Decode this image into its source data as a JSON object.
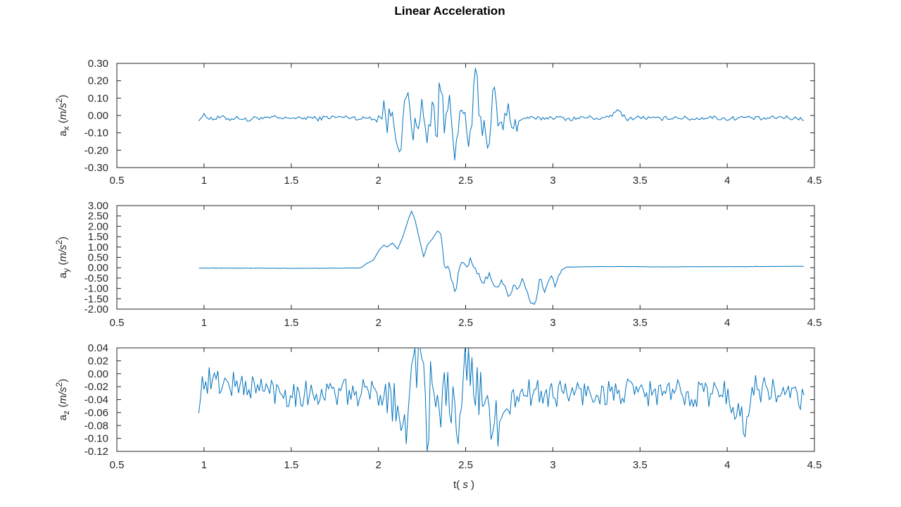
{
  "figure": {
    "title": "Linear Acceleration",
    "xlabel_main": "t( ",
    "xlabel_unit": "s",
    "xlabel_close": " )",
    "series_color": "#0072BD"
  },
  "chart_data": [
    {
      "type": "line",
      "ylabel_base": "a",
      "ylabel_sub": "x",
      "ylabel_unit_open": " (",
      "ylabel_unit": "m/s",
      "ylabel_exp": "2",
      "ylabel_unit_close": ")",
      "xlim": [
        0.5,
        4.5
      ],
      "ylim": [
        -0.3,
        0.3
      ],
      "xticks": [
        "0.5",
        "1",
        "1.5",
        "2",
        "2.5",
        "3",
        "3.5",
        "4",
        "4.5"
      ],
      "yticks": [
        "-0.30",
        "-0.20",
        "-0.10",
        "0.00",
        "0.10",
        "0.20",
        "0.30"
      ],
      "t_start": 0.97,
      "t_end": 4.44,
      "keyframes": [
        [
          0.97,
          -0.02
        ],
        [
          1.0,
          0.0
        ],
        [
          1.05,
          -0.02
        ],
        [
          1.1,
          -0.01
        ],
        [
          1.15,
          -0.02
        ],
        [
          1.2,
          -0.01
        ],
        [
          1.25,
          -0.03
        ],
        [
          1.3,
          -0.01
        ],
        [
          1.35,
          -0.02
        ],
        [
          1.4,
          -0.01
        ],
        [
          1.45,
          -0.02
        ],
        [
          1.5,
          -0.01
        ],
        [
          1.55,
          -0.02
        ],
        [
          1.6,
          -0.01
        ],
        [
          1.65,
          -0.02
        ],
        [
          1.7,
          -0.01
        ],
        [
          1.75,
          -0.01
        ],
        [
          1.8,
          -0.01
        ],
        [
          1.85,
          -0.01
        ],
        [
          1.9,
          -0.02
        ],
        [
          1.95,
          -0.01
        ],
        [
          2.0,
          -0.03
        ],
        [
          2.03,
          0.05
        ],
        [
          2.05,
          -0.05
        ],
        [
          2.08,
          0.04
        ],
        [
          2.1,
          -0.08
        ],
        [
          2.13,
          -0.2
        ],
        [
          2.16,
          0.14
        ],
        [
          2.2,
          -0.1
        ],
        [
          2.25,
          0.05
        ],
        [
          2.28,
          -0.17
        ],
        [
          2.31,
          0.1
        ],
        [
          2.34,
          -0.15
        ],
        [
          2.35,
          0.28
        ],
        [
          2.38,
          -0.1
        ],
        [
          2.41,
          0.15
        ],
        [
          2.44,
          -0.24
        ],
        [
          2.48,
          0.05
        ],
        [
          2.52,
          -0.18
        ],
        [
          2.55,
          0.15
        ],
        [
          2.56,
          0.27
        ],
        [
          2.58,
          -0.05
        ],
        [
          2.61,
          -0.05
        ],
        [
          2.63,
          -0.18
        ],
        [
          2.66,
          0.14
        ],
        [
          2.7,
          -0.1
        ],
        [
          2.74,
          0.03
        ],
        [
          2.78,
          -0.05
        ],
        [
          2.85,
          -0.01
        ],
        [
          2.9,
          -0.02
        ],
        [
          3.0,
          -0.01
        ],
        [
          3.1,
          -0.02
        ],
        [
          3.2,
          -0.01
        ],
        [
          3.3,
          -0.02
        ],
        [
          3.38,
          0.03
        ],
        [
          3.42,
          -0.02
        ],
        [
          3.5,
          -0.01
        ],
        [
          3.6,
          -0.02
        ],
        [
          3.7,
          -0.01
        ],
        [
          3.8,
          -0.02
        ],
        [
          3.9,
          -0.01
        ],
        [
          4.0,
          -0.02
        ],
        [
          4.1,
          -0.01
        ],
        [
          4.2,
          -0.02
        ],
        [
          4.3,
          -0.01
        ],
        [
          4.44,
          -0.02
        ]
      ],
      "noise": 0.012,
      "burst_noise": 0.07,
      "burst": [
        2.0,
        2.8
      ]
    },
    {
      "type": "line",
      "ylabel_base": "a",
      "ylabel_sub": "y",
      "ylabel_unit_open": " (",
      "ylabel_unit": "m/s",
      "ylabel_exp": "2",
      "ylabel_unit_close": ")",
      "xlim": [
        0.5,
        4.5
      ],
      "ylim": [
        -2.0,
        3.0
      ],
      "xticks": [
        "0.5",
        "1",
        "1.5",
        "2",
        "2.5",
        "3",
        "3.5",
        "4",
        "4.5"
      ],
      "yticks": [
        "-2.00",
        "-1.50",
        "-1.00",
        "-0.50",
        "0.00",
        "0.50",
        "1.00",
        "1.50",
        "2.00",
        "2.50",
        "3.00"
      ],
      "t_start": 0.97,
      "t_end": 4.44,
      "keyframes": [
        [
          0.97,
          -0.02
        ],
        [
          1.2,
          -0.02
        ],
        [
          1.5,
          -0.03
        ],
        [
          1.8,
          -0.02
        ],
        [
          1.9,
          -0.01
        ],
        [
          1.93,
          0.2
        ],
        [
          1.97,
          0.35
        ],
        [
          2.0,
          0.8
        ],
        [
          2.03,
          1.1
        ],
        [
          2.05,
          1.0
        ],
        [
          2.08,
          1.2
        ],
        [
          2.11,
          0.9
        ],
        [
          2.14,
          1.5
        ],
        [
          2.17,
          2.3
        ],
        [
          2.19,
          2.75
        ],
        [
          2.21,
          2.3
        ],
        [
          2.24,
          1.2
        ],
        [
          2.26,
          0.5
        ],
        [
          2.28,
          1.1
        ],
        [
          2.31,
          1.4
        ],
        [
          2.34,
          1.8
        ],
        [
          2.36,
          1.6
        ],
        [
          2.38,
          -0.1
        ],
        [
          2.4,
          0.1
        ],
        [
          2.42,
          -0.7
        ],
        [
          2.44,
          -1.2
        ],
        [
          2.46,
          -0.3
        ],
        [
          2.48,
          0.3
        ],
        [
          2.5,
          0.0
        ],
        [
          2.53,
          0.4
        ],
        [
          2.55,
          -0.1
        ],
        [
          2.58,
          -0.4
        ],
        [
          2.6,
          -0.9
        ],
        [
          2.63,
          -0.3
        ],
        [
          2.65,
          -0.5
        ],
        [
          2.68,
          -1.1
        ],
        [
          2.7,
          -0.6
        ],
        [
          2.73,
          -1.0
        ],
        [
          2.75,
          -1.6
        ],
        [
          2.77,
          -0.8
        ],
        [
          2.8,
          -1.2
        ],
        [
          2.83,
          -0.4
        ],
        [
          2.85,
          -1.2
        ],
        [
          2.87,
          -1.7
        ],
        [
          2.89,
          -1.75
        ],
        [
          2.91,
          -1.3
        ],
        [
          2.93,
          -0.4
        ],
        [
          2.95,
          -1.2
        ],
        [
          2.97,
          -0.8
        ],
        [
          2.99,
          -0.2
        ],
        [
          3.01,
          -0.9
        ],
        [
          3.03,
          -0.5
        ],
        [
          3.05,
          -0.1
        ],
        [
          3.08,
          0.03
        ],
        [
          3.2,
          0.05
        ],
        [
          3.4,
          0.06
        ],
        [
          3.6,
          0.04
        ],
        [
          3.8,
          0.05
        ],
        [
          4.0,
          0.05
        ],
        [
          4.2,
          0.06
        ],
        [
          4.44,
          0.07
        ]
      ],
      "noise": 0.02,
      "burst_noise": 0.15,
      "burst": [
        2.4,
        3.05
      ]
    },
    {
      "type": "line",
      "ylabel_base": "a",
      "ylabel_sub": "z",
      "ylabel_unit_open": " (",
      "ylabel_unit": "m/s",
      "ylabel_exp": "2",
      "ylabel_unit_close": ")",
      "xlim": [
        0.5,
        4.5
      ],
      "ylim": [
        -0.12,
        0.04
      ],
      "xticks": [
        "0.5",
        "1",
        "1.5",
        "2",
        "2.5",
        "3",
        "3.5",
        "4",
        "4.5"
      ],
      "yticks": [
        "-0.12",
        "-0.10",
        "-0.08",
        "-0.06",
        "-0.04",
        "-0.02",
        "0.00",
        "0.02",
        "0.04"
      ],
      "t_start": 0.97,
      "t_end": 4.44,
      "keyframes": [
        [
          0.97,
          -0.04
        ],
        [
          1.0,
          -0.01
        ],
        [
          1.5,
          -0.03
        ],
        [
          2.0,
          -0.03
        ],
        [
          2.1,
          -0.03
        ],
        [
          2.15,
          -0.09
        ],
        [
          2.2,
          0.01
        ],
        [
          2.25,
          0.04
        ],
        [
          2.28,
          -0.11
        ],
        [
          2.31,
          0.03
        ],
        [
          2.34,
          -0.08
        ],
        [
          2.4,
          -0.02
        ],
        [
          2.47,
          -0.11
        ],
        [
          2.5,
          0.03
        ],
        [
          2.6,
          -0.05
        ],
        [
          2.7,
          -0.08
        ],
        [
          2.8,
          -0.03
        ],
        [
          3.0,
          -0.03
        ],
        [
          3.5,
          -0.03
        ],
        [
          4.0,
          -0.03
        ],
        [
          4.1,
          -0.08
        ],
        [
          4.15,
          -0.02
        ],
        [
          4.44,
          -0.04
        ]
      ],
      "noise": 0.022,
      "burst_noise": 0.045,
      "burst": [
        2.05,
        2.7
      ]
    }
  ]
}
